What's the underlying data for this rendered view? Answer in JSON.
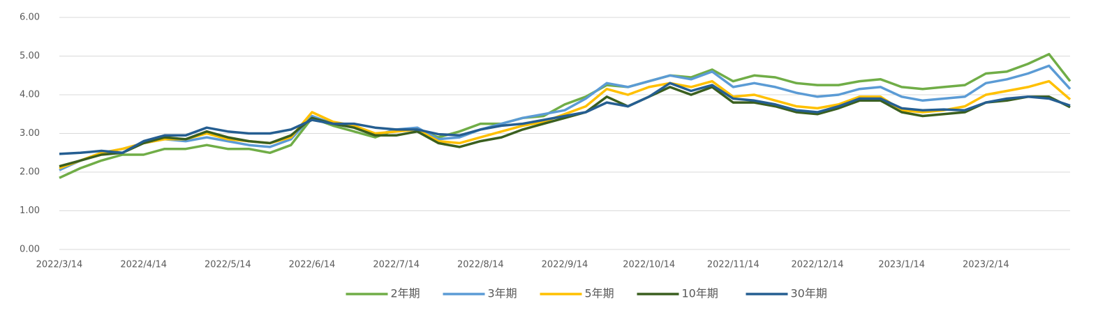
{
  "chart_data": {
    "type": "line",
    "categories": [
      "2022/3/14",
      null,
      null,
      null,
      "2022/4/14",
      null,
      null,
      null,
      "2022/5/14",
      null,
      null,
      null,
      "2022/6/14",
      null,
      null,
      null,
      "2022/7/14",
      null,
      null,
      null,
      "2022/8/14",
      null,
      null,
      null,
      "2022/9/14",
      null,
      null,
      null,
      "2022/10/14",
      null,
      null,
      null,
      "2022/11/14",
      null,
      null,
      null,
      "2022/12/14",
      null,
      null,
      null,
      "2023/1/14",
      null,
      null,
      null,
      "2023/2/14",
      null,
      null,
      null,
      null
    ],
    "series": [
      {
        "name": "2年期",
        "color": "#70ad47",
        "values": [
          1.85,
          2.1,
          2.3,
          2.45,
          2.45,
          2.6,
          2.6,
          2.7,
          2.6,
          2.6,
          2.5,
          2.7,
          3.4,
          3.2,
          3.05,
          2.9,
          3.1,
          3.1,
          2.9,
          3.05,
          3.25,
          3.25,
          3.4,
          3.45,
          3.75,
          3.95,
          4.25,
          4.2,
          4.35,
          4.5,
          4.45,
          4.65,
          4.35,
          4.5,
          4.45,
          4.3,
          4.25,
          4.25,
          4.35,
          4.4,
          4.2,
          4.15,
          4.2,
          4.25,
          4.55,
          4.6,
          4.8,
          5.05,
          4.35
        ]
      },
      {
        "name": "3年期",
        "color": "#5b9bd5",
        "values": [
          2.05,
          2.3,
          2.5,
          2.6,
          2.75,
          2.85,
          2.8,
          2.9,
          2.8,
          2.7,
          2.65,
          2.85,
          3.45,
          3.25,
          3.15,
          2.95,
          3.1,
          3.15,
          2.85,
          2.9,
          3.1,
          3.25,
          3.4,
          3.5,
          3.6,
          3.9,
          4.3,
          4.2,
          4.35,
          4.5,
          4.4,
          4.6,
          4.2,
          4.3,
          4.2,
          4.05,
          3.95,
          4.0,
          4.15,
          4.2,
          3.95,
          3.85,
          3.9,
          3.95,
          4.3,
          4.4,
          4.55,
          4.75,
          4.15
        ]
      },
      {
        "name": "5年期",
        "color": "#ffc000",
        "values": [
          2.1,
          2.3,
          2.5,
          2.6,
          2.75,
          2.85,
          2.85,
          3.0,
          2.85,
          2.8,
          2.75,
          2.9,
          3.55,
          3.3,
          3.2,
          3.0,
          3.05,
          3.1,
          2.8,
          2.75,
          2.9,
          3.05,
          3.2,
          3.3,
          3.5,
          3.7,
          4.15,
          4.0,
          4.2,
          4.3,
          4.2,
          4.35,
          3.95,
          4.0,
          3.85,
          3.7,
          3.65,
          3.75,
          3.95,
          3.95,
          3.6,
          3.55,
          3.6,
          3.7,
          4.0,
          4.1,
          4.2,
          4.35,
          3.88
        ]
      },
      {
        "name": "10年期",
        "color": "#3a5f1f",
        "values": [
          2.15,
          2.3,
          2.45,
          2.5,
          2.75,
          2.9,
          2.85,
          3.05,
          2.9,
          2.8,
          2.75,
          2.95,
          3.4,
          3.25,
          3.15,
          2.95,
          2.95,
          3.05,
          2.75,
          2.65,
          2.8,
          2.9,
          3.1,
          3.25,
          3.4,
          3.55,
          3.95,
          3.7,
          3.95,
          4.2,
          4.0,
          4.2,
          3.8,
          3.8,
          3.7,
          3.55,
          3.5,
          3.65,
          3.85,
          3.85,
          3.55,
          3.45,
          3.5,
          3.55,
          3.8,
          3.85,
          3.95,
          3.95,
          3.68
        ]
      },
      {
        "name": "30年期",
        "color": "#255e91",
        "values": [
          2.47,
          2.5,
          2.55,
          2.5,
          2.8,
          2.95,
          2.95,
          3.15,
          3.05,
          3.0,
          3.0,
          3.1,
          3.35,
          3.25,
          3.25,
          3.15,
          3.1,
          3.1,
          2.98,
          2.95,
          3.1,
          3.2,
          3.25,
          3.35,
          3.45,
          3.55,
          3.8,
          3.7,
          3.95,
          4.3,
          4.1,
          4.25,
          3.9,
          3.85,
          3.75,
          3.6,
          3.55,
          3.7,
          3.9,
          3.9,
          3.65,
          3.6,
          3.62,
          3.6,
          3.8,
          3.9,
          3.95,
          3.9,
          3.72
        ]
      }
    ],
    "ylim": [
      0,
      6
    ],
    "yticks": [
      {
        "value": 0,
        "label": "0.00"
      },
      {
        "value": 1,
        "label": "1.00"
      },
      {
        "value": 2,
        "label": "2.00"
      },
      {
        "value": 3,
        "label": "3.00"
      },
      {
        "value": 4,
        "label": "4.00"
      },
      {
        "value": 5,
        "label": "5.00"
      },
      {
        "value": 6,
        "label": "6.00"
      }
    ],
    "grid": true,
    "legend": "bottom"
  }
}
